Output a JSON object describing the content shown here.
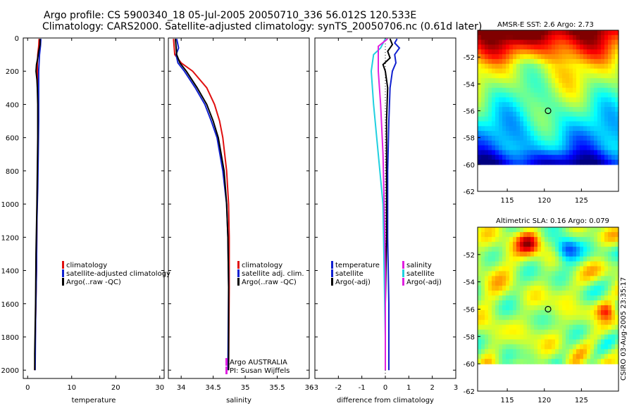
{
  "header": {
    "line1": "Argo profile: CS 5900340_18 05-Jul-2005 20050710_336 56.012S 120.533E",
    "line2": "Climatology: CARS2000. Satellite-adjusted climatology: synTS_20050706.nc (0.61d later)"
  },
  "stamp": "CSIRO 03-Aug-2005 23:35:17",
  "colors": {
    "climatology": "#e01010",
    "satellite": "#1020d0",
    "argo": "#000000",
    "salinity_sat": "#20d0e0",
    "salinity_argo": "#e020e0"
  },
  "chart_data": [
    {
      "id": "temperature",
      "type": "line",
      "xlabel": "temperature",
      "xlim": [
        -1,
        31
      ],
      "xticks": [
        0,
        10,
        20,
        30
      ],
      "ylim": [
        2050,
        0
      ],
      "yticks": [
        0,
        200,
        400,
        600,
        800,
        1000,
        1200,
        1400,
        1600,
        1800,
        2000
      ],
      "legend": [
        "climatology",
        "satellite-adjusted climatology",
        "Argo(..raw -QC)"
      ],
      "series": [
        {
          "name": "climatology",
          "color": "#e01010",
          "depth": [
            5,
            50,
            100,
            150,
            200,
            300,
            400,
            500,
            700,
            900,
            1100,
            1400,
            1700,
            2000
          ],
          "values": [
            2.6,
            2.5,
            2.3,
            2.2,
            2.2,
            2.3,
            2.4,
            2.4,
            2.3,
            2.2,
            2.1,
            2.0,
            1.8,
            1.6
          ]
        },
        {
          "name": "satellite-adjusted climatology",
          "color": "#1020d0",
          "depth": [
            5,
            50,
            100,
            150,
            200,
            300,
            400,
            500,
            700,
            900,
            1100,
            1400,
            1700,
            2000
          ],
          "values": [
            3.0,
            2.9,
            2.7,
            2.6,
            2.5,
            2.5,
            2.5,
            2.5,
            2.4,
            2.3,
            2.1,
            2.0,
            1.8,
            1.7
          ]
        },
        {
          "name": "Argo(..raw -QC)",
          "color": "#000000",
          "depth": [
            5,
            40,
            80,
            120,
            160,
            200,
            250,
            300,
            400,
            600,
            800,
            1000,
            1300,
            1600,
            1900,
            2000
          ],
          "values": [
            2.8,
            2.8,
            2.5,
            2.3,
            2.0,
            1.9,
            2.1,
            2.2,
            2.3,
            2.3,
            2.2,
            2.1,
            1.9,
            1.8,
            1.6,
            1.6
          ]
        }
      ]
    },
    {
      "id": "salinity",
      "type": "line",
      "xlabel": "salinity",
      "xlim": [
        33.8,
        36.0
      ],
      "xticks": [
        34,
        34.5,
        35,
        35.5,
        36
      ],
      "ylim": [
        2050,
        0
      ],
      "legend": [
        "climatology",
        "satellite adj. clim.",
        "Argo(..raw -QC)"
      ],
      "footnote": [
        "Argo AUSTRALIA",
        "PI: Susan Wijffels"
      ],
      "series": [
        {
          "name": "climatology",
          "color": "#e01010",
          "depth": [
            5,
            100,
            150,
            200,
            300,
            400,
            500,
            600,
            800,
            1000,
            1200,
            1500,
            2000
          ],
          "values": [
            33.88,
            33.9,
            34.0,
            34.18,
            34.4,
            34.52,
            34.6,
            34.65,
            34.71,
            34.74,
            34.75,
            34.75,
            34.74
          ]
        },
        {
          "name": "satellite adj. clim.",
          "color": "#1020d0",
          "depth": [
            5,
            60,
            100,
            150,
            200,
            300,
            400,
            500,
            600,
            800,
            1000,
            1200,
            1500,
            2000
          ],
          "values": [
            33.93,
            33.96,
            33.92,
            33.95,
            34.05,
            34.22,
            34.37,
            34.47,
            34.56,
            34.65,
            34.71,
            34.73,
            34.74,
            34.73
          ]
        },
        {
          "name": "Argo(..raw -QC)",
          "color": "#000000",
          "depth": [
            5,
            50,
            100,
            150,
            200,
            300,
            400,
            500,
            600,
            800,
            1000,
            1200,
            1500,
            2000
          ],
          "values": [
            33.91,
            33.92,
            33.93,
            33.98,
            34.08,
            34.25,
            34.4,
            34.5,
            34.58,
            34.67,
            34.71,
            34.73,
            34.74,
            34.74
          ]
        }
      ]
    },
    {
      "id": "difference",
      "type": "line",
      "xlabel": "difference from climatology",
      "xlim": [
        -3,
        3
      ],
      "xticks": [
        -3,
        -2,
        -1,
        0,
        1,
        2,
        3
      ],
      "ylim": [
        2050,
        0
      ],
      "legend_left": [
        "temperature",
        "satellite",
        "Argo(-adj)"
      ],
      "legend_right": [
        "salinity",
        "satellite",
        "Argo(-adj)"
      ],
      "series": [
        {
          "name": "temperature satellite",
          "color": "#1020d0",
          "depth": [
            5,
            30,
            60,
            100,
            150,
            200,
            300,
            500,
            800,
            1200,
            1600,
            2000
          ],
          "values": [
            0.5,
            0.4,
            0.6,
            0.4,
            0.45,
            0.3,
            0.2,
            0.15,
            0.1,
            0.1,
            0.15,
            0.15
          ]
        },
        {
          "name": "temperature Argo(-adj)",
          "color": "#000000",
          "depth": [
            5,
            40,
            80,
            120,
            160,
            200,
            300,
            500,
            800,
            1200,
            1600,
            2000
          ],
          "values": [
            0.2,
            0.3,
            0.1,
            0.2,
            -0.1,
            0.0,
            0.1,
            0.05,
            0.05,
            0.05,
            0.0,
            0.0
          ]
        },
        {
          "name": "salinity satellite",
          "color": "#20d0e0",
          "depth": [
            5,
            60,
            100,
            200,
            400,
            700,
            1000,
            1400,
            1800,
            2000
          ],
          "values": [
            0.0,
            -0.2,
            -0.5,
            -0.6,
            -0.5,
            -0.3,
            -0.1,
            -0.05,
            0.0,
            0.0
          ]
        },
        {
          "name": "salinity Argo(-adj)",
          "color": "#e020e0",
          "depth": [
            5,
            50,
            100,
            200,
            400,
            700,
            1000,
            1400,
            1800,
            2000
          ],
          "values": [
            0.1,
            -0.3,
            -0.3,
            -0.3,
            -0.2,
            -0.1,
            -0.05,
            0.0,
            0.0,
            0.0
          ]
        }
      ]
    },
    {
      "id": "sst-map",
      "type": "heatmap",
      "title": "AMSR-E SST: 2.6 Argo: 2.73",
      "xlim": [
        111,
        130
      ],
      "ylim": [
        -62,
        -50
      ],
      "data_ylim": [
        -60,
        -50
      ],
      "xticks": [
        115,
        120,
        125
      ],
      "yticks": [
        -52,
        -54,
        -56,
        -58,
        -60,
        -62
      ],
      "marker": [
        120.5,
        -56.0
      ]
    },
    {
      "id": "sla-map",
      "type": "heatmap",
      "title": "Altimetric SLA: 0.16 Argo: 0.079",
      "xlim": [
        111,
        130
      ],
      "ylim": [
        -62,
        -50
      ],
      "data_ylim": [
        -60,
        -50
      ],
      "xticks": [
        115,
        120,
        125
      ],
      "yticks": [
        -52,
        -54,
        -56,
        -58,
        -60,
        -62
      ],
      "marker": [
        120.5,
        -56.0
      ]
    }
  ]
}
